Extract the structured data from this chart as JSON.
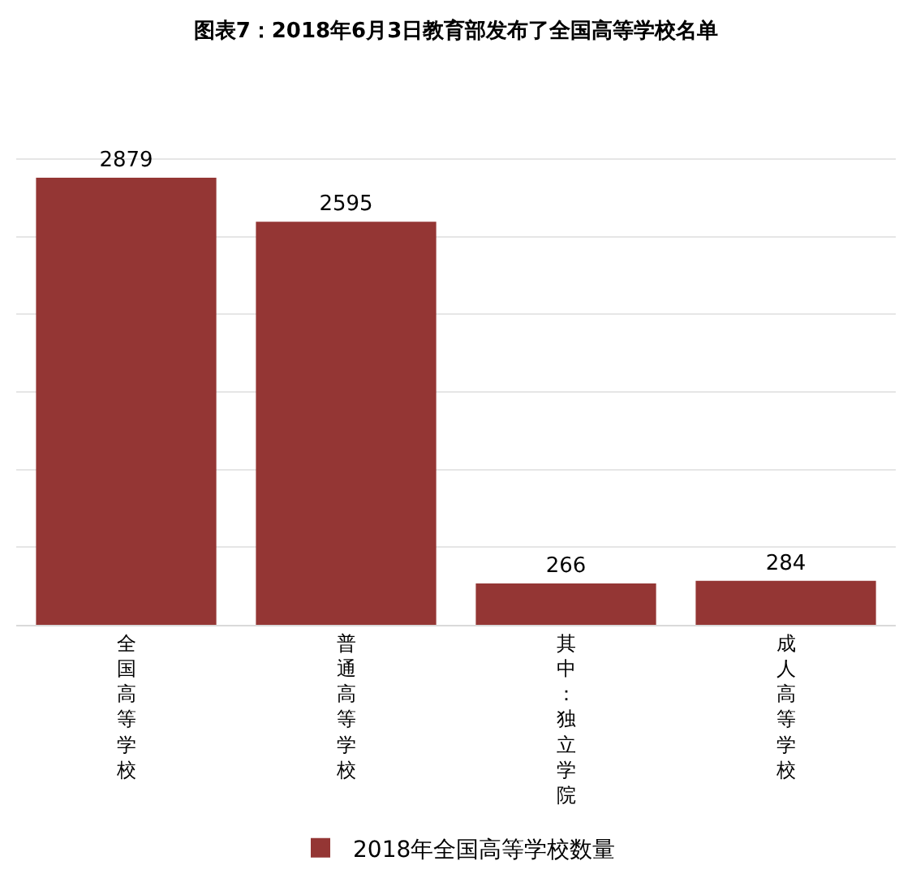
{
  "chart_data": {
    "type": "bar",
    "title": "图表7：2018年6月3日教育部发布了全国高等学校名单",
    "categories": [
      "全国高等学校",
      "普通高等学校",
      "其中：独立学院",
      "成人高等学校"
    ],
    "series": [
      {
        "name": "2018年全国高等学校数量",
        "color": "#943634",
        "values": [
          2879,
          2595,
          266,
          284
        ]
      }
    ],
    "grid": "y",
    "legend": "bottom",
    "data_labels": true,
    "tick_labels": "x"
  }
}
